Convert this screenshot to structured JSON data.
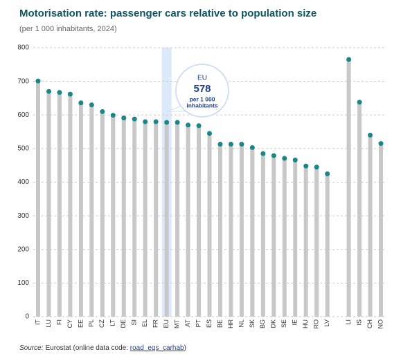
{
  "chart_data": {
    "type": "bar",
    "title": "Motorisation rate: passenger cars relative to population size",
    "subtitle": "(per 1 000 inhabitants, 2024)",
    "categories": [
      "IT",
      "LU",
      "FI",
      "CY",
      "EE",
      "PL",
      "CZ",
      "LT",
      "DE",
      "SI",
      "EL",
      "FR",
      "EU",
      "MT",
      "AT",
      "PT",
      "ES",
      "BE",
      "HR",
      "NL",
      "SK",
      "BG",
      "DK",
      "SE",
      "IE",
      "HU",
      "RO",
      "LV",
      null,
      "LI",
      "IS",
      "CH",
      "NO"
    ],
    "values": [
      701,
      670,
      667,
      662,
      636,
      630,
      610,
      599,
      591,
      588,
      580,
      580,
      578,
      578,
      570,
      568,
      545,
      513,
      513,
      513,
      503,
      485,
      479,
      471,
      466,
      448,
      445,
      425,
      null,
      765,
      638,
      540,
      515
    ],
    "color": "#c8c8c8",
    "marker_color": "#1a8786",
    "highlight": "EU",
    "ylim": [
      0,
      800
    ],
    "yticks": [
      0,
      100,
      200,
      300,
      400,
      500,
      600,
      700,
      800
    ],
    "grid": true,
    "annotation": {
      "lines": [
        "per 1 000",
        "inhabitants"
      ]
    },
    "source": {
      "label": "Source:",
      "text": "Eurostat (online data code: ",
      "link": "road_eqs_carhab",
      "end": ")"
    }
  }
}
